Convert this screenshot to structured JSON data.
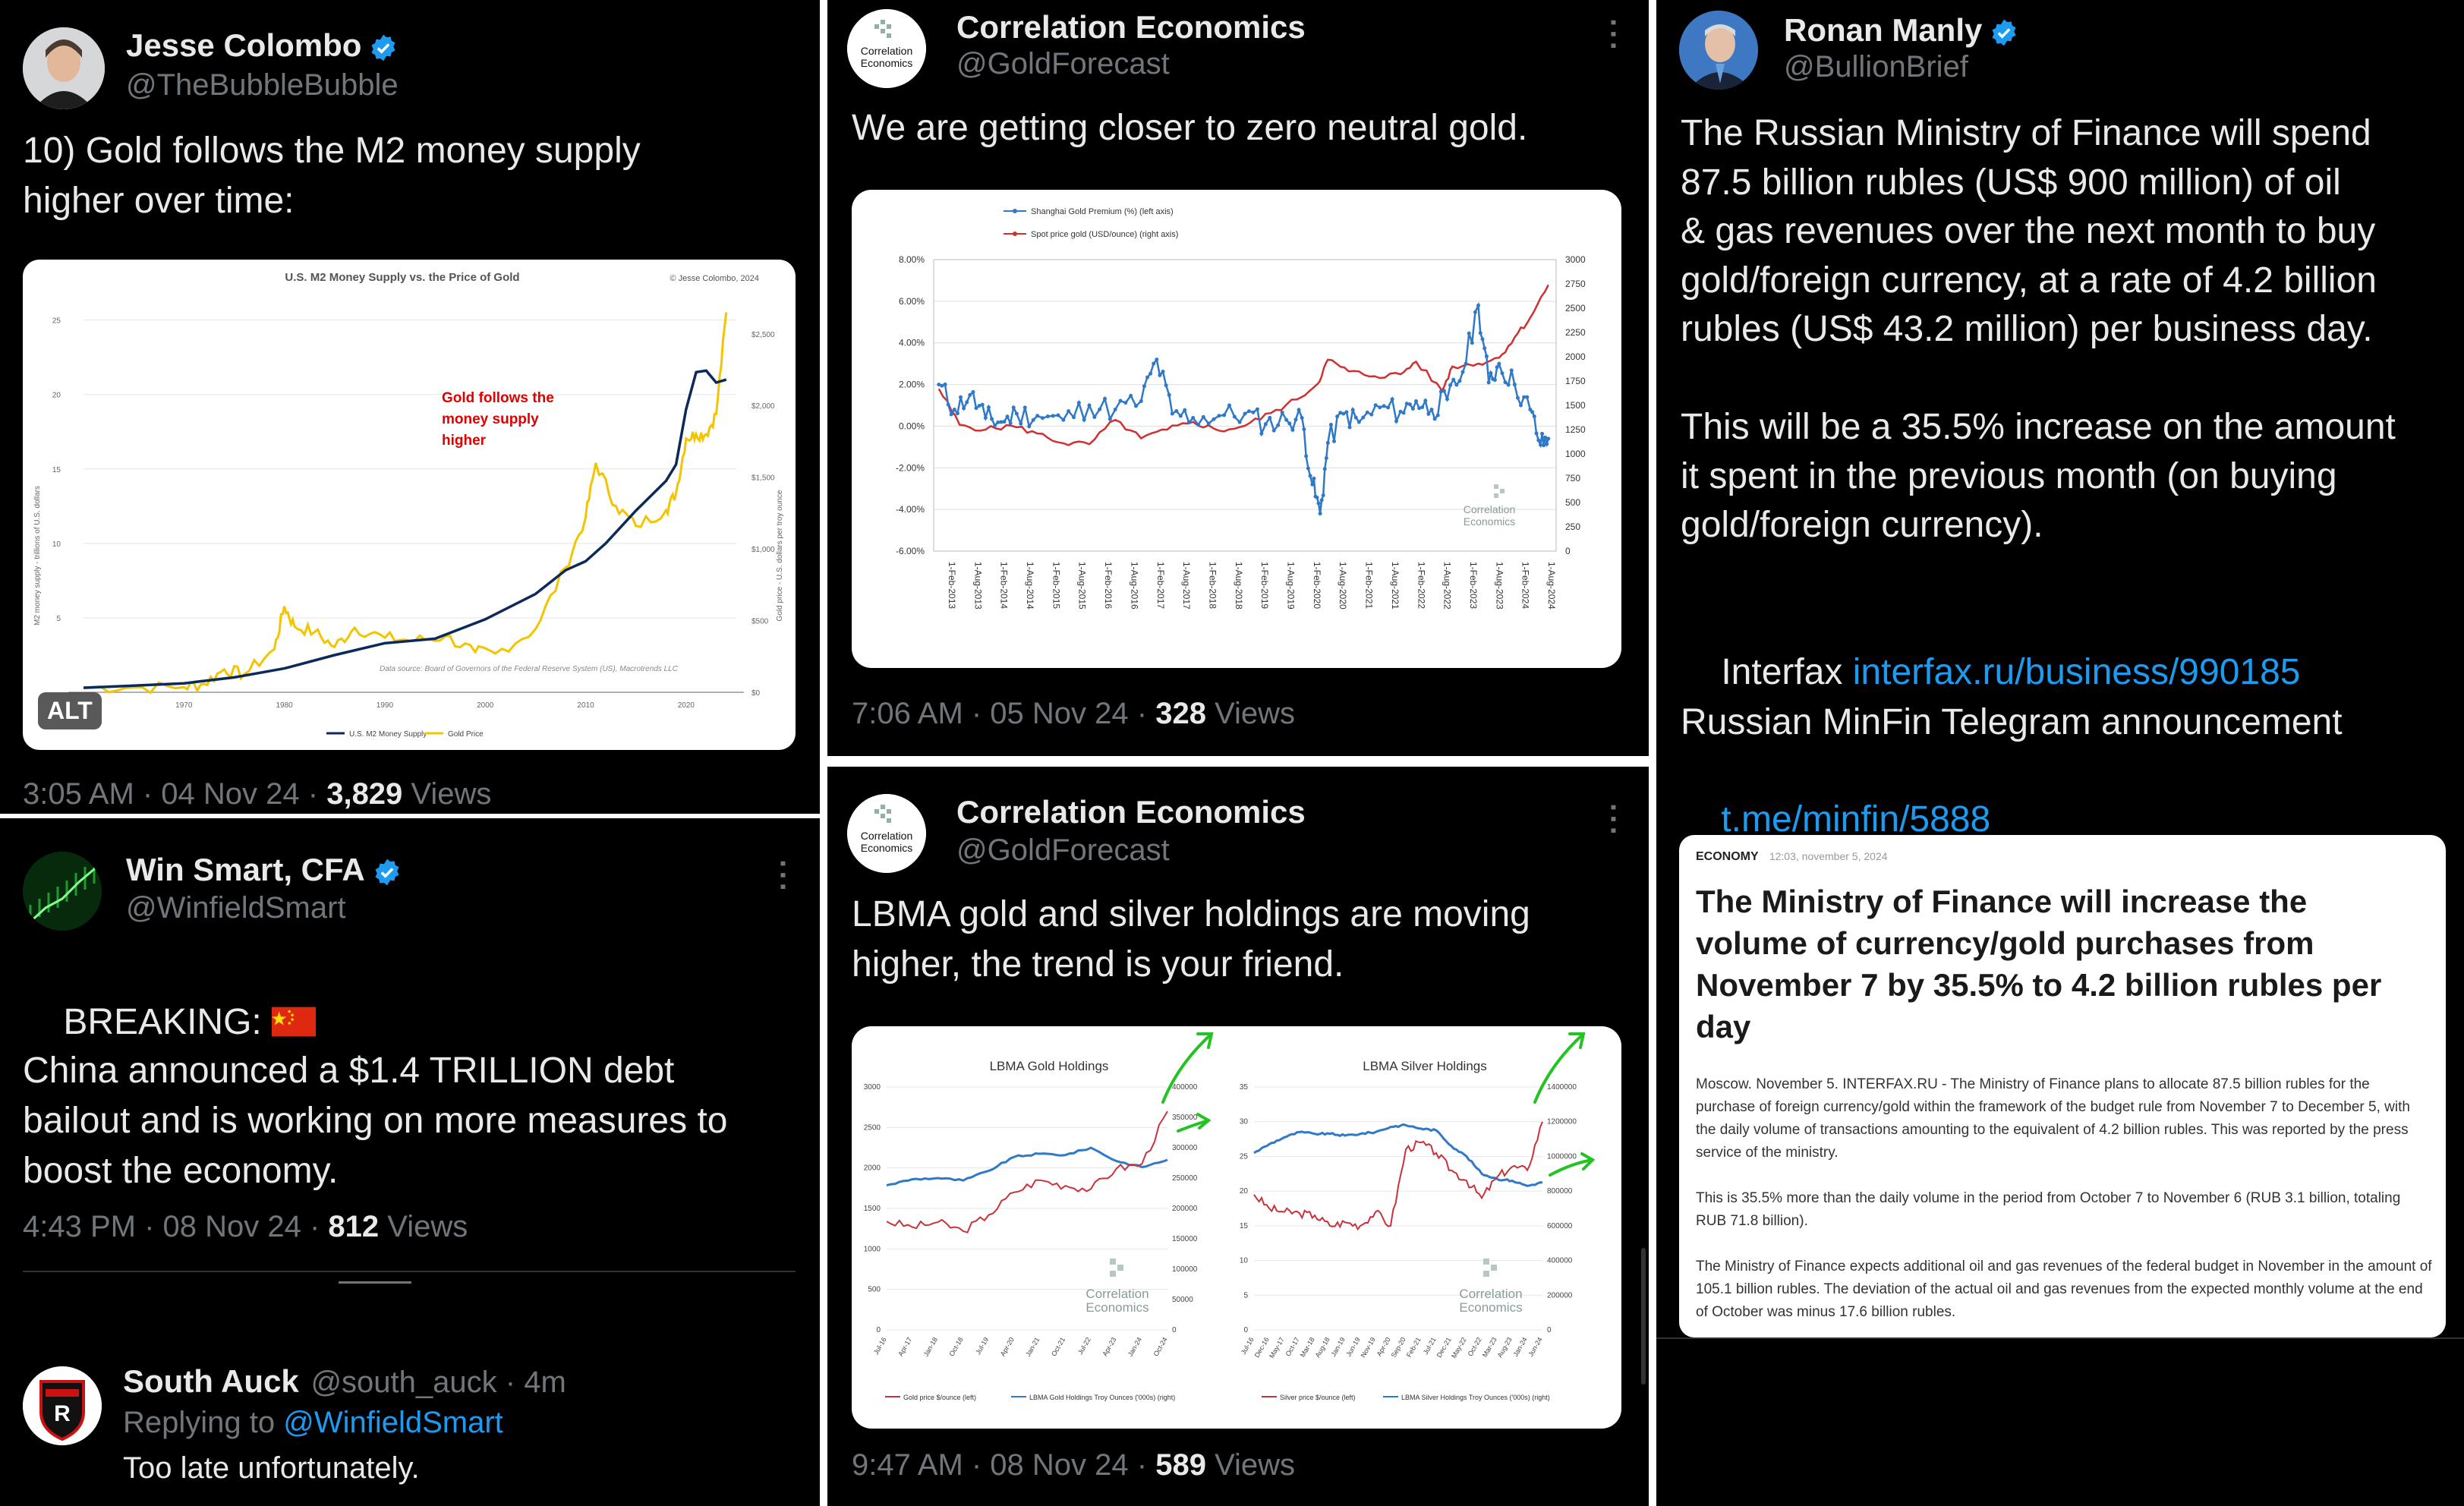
{
  "colors": {
    "background": "#000000",
    "text": "#e7e9ea",
    "muted": "#71767b",
    "link": "#1d9bf0",
    "verified": "#1d9bf0",
    "gold_series": "#f5c400",
    "m2_series": "#0b2a5a",
    "shanghai_series": "#2f79c8",
    "spot_series": "#d03030",
    "lbma_gold": "#c8333b",
    "lbma_holdings": "#2f79c8",
    "arrow": "#22c322",
    "annotation_red": "#e00000"
  },
  "icons": {
    "verified": "verified-badge-icon",
    "more": "more-options-icon",
    "flag": "china-flag-icon"
  },
  "tweet1": {
    "name": "Jesse Colombo",
    "handle": "@TheBubbleBubble",
    "text": "10) Gold follows the M2 money supply\nhigher over time:",
    "alt_badge": "ALT",
    "time": "3:05 AM · 04 Nov 24 · ",
    "views_count": "3,829",
    "views_label": " Views",
    "chart": {
      "title": "U.S. M2 Money Supply vs. the Price of Gold",
      "copyright": "© Jesse Colombo, 2024",
      "annotation": [
        "Gold follows the",
        "money supply",
        "higher"
      ],
      "ylabel_left": "M2 money supply - trillions of U.S. dollars",
      "ylabel_right": "Gold price - U.S. dollars per troy ounce",
      "yticks_left": [
        "25",
        "20",
        "15",
        "10",
        "5"
      ],
      "yticks_right": [
        "$2,500",
        "$2,000",
        "$1,500",
        "$1,000",
        "$500",
        "$0"
      ],
      "xticks": [
        "1970",
        "1980",
        "1990",
        "2000",
        "2010",
        "2020"
      ],
      "source": "Data source: Board of Governors of the Federal Reserve System (US), Macrotrends LLC",
      "legend": [
        "U.S. M2 Money Supply",
        "Gold Price"
      ]
    }
  },
  "chart_data": [
    {
      "type": "line",
      "title": "U.S. M2 Money Supply vs. the Price of Gold",
      "x_unit": "year",
      "xlim": [
        1960,
        2025
      ],
      "series": [
        {
          "name": "U.S. M2 Money Supply",
          "axis": "left",
          "ylim": [
            0,
            26
          ],
          "x": [
            1960,
            1965,
            1970,
            1975,
            1980,
            1985,
            1990,
            1995,
            2000,
            2005,
            2008,
            2010,
            2012,
            2015,
            2018,
            2019,
            2020,
            2021,
            2022,
            2023,
            2024
          ],
          "y": [
            0.3,
            0.45,
            0.6,
            1.0,
            1.6,
            2.5,
            3.3,
            3.6,
            4.9,
            6.6,
            8.2,
            8.8,
            10.0,
            12.2,
            14.2,
            15.3,
            19.0,
            21.5,
            21.6,
            20.8,
            21.0
          ]
        },
        {
          "name": "Gold Price",
          "axis": "right",
          "ylim": [
            0,
            2700
          ],
          "x": [
            1960,
            1965,
            1970,
            1972,
            1974,
            1976,
            1979,
            1980,
            1981,
            1983,
            1985,
            1987,
            1990,
            1993,
            1996,
            1999,
            2001,
            2005,
            2008,
            2010,
            2011,
            2013,
            2015,
            2018,
            2019,
            2020,
            2021,
            2022,
            2023,
            2024
          ],
          "y": [
            35,
            35,
            36,
            58,
            160,
            125,
            300,
            600,
            460,
            420,
            317,
            450,
            380,
            360,
            390,
            280,
            270,
            440,
            870,
            1220,
            1600,
            1300,
            1160,
            1270,
            1390,
            1770,
            1800,
            1800,
            1940,
            2650
          ]
        }
      ]
    },
    {
      "type": "line",
      "title": "",
      "legend": [
        "Shanghai Gold Premium (%) (left axis)",
        "Spot price gold (USD/ounce) (right axis)"
      ],
      "xticks": [
        "1-Feb-2013",
        "1-Aug-2013",
        "1-Feb-2014",
        "1-Aug-2014",
        "1-Feb-2015",
        "1-Aug-2015",
        "1-Feb-2016",
        "1-Aug-2016",
        "1-Feb-2017",
        "1-Aug-2017",
        "1-Feb-2018",
        "1-Aug-2018",
        "1-Feb-2019",
        "1-Aug-2019",
        "1-Feb-2020",
        "1-Aug-2020",
        "1-Feb-2021",
        "1-Aug-2021",
        "1-Feb-2022",
        "1-Aug-2022",
        "1-Feb-2023",
        "1-Aug-2023",
        "1-Feb-2024",
        "1-Aug-2024"
      ],
      "yticks_left": [
        "8.00%",
        "6.00%",
        "4.00%",
        "2.00%",
        "0.00%",
        "-2.00%",
        "-4.00%",
        "-6.00%"
      ],
      "yticks_right": [
        "3000",
        "2750",
        "2500",
        "2250",
        "2000",
        "1750",
        "1500",
        "1250",
        "1000",
        "750",
        "500",
        "250",
        "0"
      ],
      "ylim_left": [
        -6,
        8
      ],
      "ylim_right": [
        0,
        3000
      ],
      "watermark": [
        "Correlation",
        "Economics"
      ],
      "series": [
        {
          "name": "Shanghai Gold Premium (%) (left axis)",
          "axis": "left",
          "x": [
            2013.1,
            2013.4,
            2013.7,
            2014.0,
            2014.3,
            2014.6,
            2015.0,
            2015.5,
            2016.0,
            2016.5,
            2017.0,
            2017.3,
            2017.6,
            2018.0,
            2018.5,
            2019.0,
            2019.4,
            2019.8,
            2020.1,
            2020.3,
            2020.45,
            2020.6,
            2020.9,
            2021.2,
            2021.6,
            2022.0,
            2022.3,
            2022.6,
            2022.9,
            2023.2,
            2023.5,
            2023.7,
            2023.9,
            2024.2,
            2024.5,
            2024.7,
            2024.85
          ],
          "y": [
            2.0,
            0.8,
            1.5,
            0.4,
            0.2,
            0.6,
            0.5,
            0.3,
            1.0,
            0.8,
            1.2,
            3.2,
            0.6,
            0.4,
            0.5,
            0.6,
            0.1,
            0.3,
            0.4,
            -2.8,
            -4.2,
            -0.8,
            0.6,
            0.2,
            0.9,
            0.7,
            1.2,
            0.8,
            1.3,
            2.6,
            5.8,
            2.1,
            3.0,
            2.0,
            0.8,
            -0.9,
            -0.6
          ]
        },
        {
          "name": "Spot price gold (USD/ounce) (right axis)",
          "axis": "right",
          "x": [
            2013.1,
            2013.5,
            2014.0,
            2014.5,
            2015.0,
            2015.5,
            2016.0,
            2016.5,
            2017.0,
            2017.5,
            2018.0,
            2018.5,
            2019.0,
            2019.5,
            2020.0,
            2020.4,
            2020.6,
            2021.0,
            2021.5,
            2022.0,
            2022.3,
            2022.8,
            2023.0,
            2023.5,
            2023.9,
            2024.2,
            2024.5,
            2024.85
          ],
          "y": [
            1670,
            1300,
            1250,
            1290,
            1210,
            1110,
            1100,
            1350,
            1160,
            1250,
            1330,
            1240,
            1290,
            1420,
            1560,
            1720,
            1970,
            1850,
            1800,
            1820,
            1950,
            1650,
            1900,
            1930,
            1990,
            2200,
            2400,
            2740
          ]
        }
      ]
    },
    {
      "type": "line",
      "title": "LBMA Gold Holdings",
      "legend": [
        "Gold price $/ounce (left)",
        "LBMA Gold Holdings Troy Ounces ('000s) (right)"
      ],
      "xticks": [
        "Jul-16",
        "Apr-17",
        "Jan-18",
        "Oct-18",
        "Jul-19",
        "Apr-20",
        "Jan-21",
        "Oct-21",
        "Jul-22",
        "Apr-23",
        "Jan-24",
        "Oct-24"
      ],
      "yticks_left": [
        "3000",
        "2500",
        "2000",
        "1500",
        "1000",
        "500",
        "0"
      ],
      "yticks_right": [
        "400000",
        "350000",
        "300000",
        "250000",
        "200000",
        "150000",
        "100000",
        "50000",
        "0"
      ],
      "ylim_left": [
        0,
        3000
      ],
      "ylim_right": [
        0,
        400000
      ],
      "watermark": [
        "Correlation",
        "Economics"
      ],
      "series": [
        {
          "name": "Gold price $/ounce (left)",
          "axis": "left",
          "x": [
            "Jul-16",
            "Apr-17",
            "Jan-18",
            "Oct-18",
            "Jul-19",
            "Apr-20",
            "Jan-21",
            "Oct-21",
            "Jul-22",
            "Apr-23",
            "Jan-24",
            "Oct-24"
          ],
          "y": [
            1340,
            1270,
            1330,
            1220,
            1420,
            1700,
            1850,
            1780,
            1740,
            1990,
            2050,
            2700
          ]
        },
        {
          "name": "LBMA Gold Holdings Troy Ounces ('000s) (right)",
          "axis": "right",
          "x": [
            "Jul-16",
            "Apr-17",
            "Jan-18",
            "Oct-18",
            "Jul-19",
            "Apr-20",
            "Jan-21",
            "Oct-21",
            "Jul-22",
            "Apr-23",
            "Jan-24",
            "Oct-24"
          ],
          "y": [
            238000,
            248000,
            250000,
            246000,
            262000,
            285000,
            290000,
            288000,
            300000,
            278000,
            268000,
            280000
          ]
        }
      ]
    },
    {
      "type": "line",
      "title": "LBMA Silver Holdings",
      "legend": [
        "Silver price $/ounce (left)",
        "LBMA Silver Holdings Troy Ounces ('000s) (right)"
      ],
      "xticks": [
        "Jul-16",
        "Dec-16",
        "May-17",
        "Oct-17",
        "Mar-18",
        "Aug-18",
        "Jan-19",
        "Jun-19",
        "Nov-19",
        "Apr-20",
        "Sep-20",
        "Feb-21",
        "Jul-21",
        "Dec-21",
        "May-22",
        "Oct-22",
        "Mar-23",
        "Aug-23",
        "Jan-24",
        "Jun-24"
      ],
      "yticks_left": [
        "35",
        "30",
        "25",
        "20",
        "15",
        "10",
        "5",
        "0"
      ],
      "yticks_right": [
        "1400000",
        "1200000",
        "1000000",
        "800000",
        "600000",
        "400000",
        "200000",
        "0"
      ],
      "ylim_left": [
        0,
        35
      ],
      "ylim_right": [
        0,
        1400000
      ],
      "watermark": [
        "Correlation",
        "Economics"
      ],
      "series": [
        {
          "name": "Silver price $/ounce (left)",
          "axis": "left",
          "x": [
            "Jul-16",
            "Dec-16",
            "May-17",
            "Oct-17",
            "Mar-18",
            "Aug-18",
            "Jan-19",
            "Jun-19",
            "Nov-19",
            "Apr-20",
            "Sep-20",
            "Feb-21",
            "Jul-21",
            "Dec-21",
            "May-22",
            "Oct-22",
            "Mar-23",
            "Aug-23",
            "Jan-24",
            "Jun-24"
          ],
          "y": [
            19.5,
            17.5,
            17.0,
            16.8,
            16.5,
            15.0,
            15.5,
            15.0,
            17.0,
            15.0,
            26.0,
            27.0,
            25.5,
            23.0,
            21.5,
            19.0,
            22.0,
            23.5,
            23.0,
            30.0
          ]
        },
        {
          "name": "LBMA Silver Holdings Troy Ounces ('000s) (right)",
          "axis": "right",
          "x": [
            "Jul-16",
            "Dec-16",
            "May-17",
            "Oct-17",
            "Mar-18",
            "Aug-18",
            "Jan-19",
            "Jun-19",
            "Nov-19",
            "Apr-20",
            "Sep-20",
            "Feb-21",
            "Jul-21",
            "Dec-21",
            "May-22",
            "Oct-22",
            "Mar-23",
            "Aug-23",
            "Jan-24",
            "Jun-24"
          ],
          "y": [
            1020000,
            1070000,
            1110000,
            1140000,
            1130000,
            1130000,
            1120000,
            1130000,
            1140000,
            1170000,
            1180000,
            1160000,
            1150000,
            1060000,
            1000000,
            900000,
            870000,
            860000,
            830000,
            850000
          ]
        }
      ]
    }
  ],
  "tweet2": {
    "name": "Correlation Economics",
    "handle": "@GoldForecast",
    "avatar_text": [
      "Correlation",
      "Economics"
    ],
    "text": "We are getting closer to zero neutral gold.",
    "time": "7:06 AM · 05 Nov 24 · ",
    "views_count": "328",
    "views_label": " Views"
  },
  "tweet3": {
    "name": "Ronan Manly",
    "handle": "@BullionBrief",
    "text": "The Russian Ministry of Finance will spend\n87.5 billion rubles (US$ 900 million) of oil\n& gas revenues over the next month to buy\ngold/foreign currency, at a rate of 4.2 billion\nrubles (US$ 43.2 million) per business day.\n\nThis will be a 35.5% increase on the amount\nit spent in the previous month (on buying\ngold/foreign currency).",
    "source_label": "Interfax ",
    "source_link": "interfax.ru/business/990185",
    "tg_label": "Russian MinFin Telegram announcement",
    "tg_link": "t.me/minfin/5888",
    "article": {
      "section": "ECONOMY",
      "timestamp": "12:03, november 5, 2024",
      "headline": "The Ministry of Finance will increase the volume of currency/gold purchases from November 7 by 35.5% to 4.2 billion rubles per day",
      "p1": "Moscow. November 5. INTERFAX.RU - The Ministry of Finance plans to allocate 87.5 billion rubles for the purchase of foreign currency/gold within the framework of the budget rule from November 7 to December 5, with the daily volume of transactions amounting to the equivalent of 4.2 billion rubles. This was reported by the press service of the ministry.",
      "p2": "This is 35.5% more than the daily volume in the period from October 7 to November 6 (RUB 3.1 billion, totaling RUB 71.8 billion).",
      "p3": "The Ministry of Finance expects additional oil and gas revenues of the federal budget in November in the amount of 105.1 billion rubles. The deviation of the actual oil and gas revenues from the expected monthly volume at the end of October was minus 17.6 billion rubles."
    }
  },
  "tweet4": {
    "name": "Win Smart, CFA",
    "handle": "@WinfieldSmart",
    "line1": "BREAKING: ",
    "text": "China announced a $1.4 TRILLION debt\nbailout and is working on more measures to\nboost the economy.",
    "time": "4:43 PM · 08 Nov 24 · ",
    "views_count": "812",
    "views_label": " Views"
  },
  "reply": {
    "name": "South Auck",
    "handle": "@south_auck · 4m",
    "replying_label": "Replying to ",
    "replying_to": "@WinfieldSmart",
    "text": "Too late unfortunately."
  },
  "tweet5": {
    "name": "Correlation Economics",
    "handle": "@GoldForecast",
    "avatar_text": [
      "Correlation",
      "Economics"
    ],
    "text": "LBMA gold and silver holdings are moving\nhigher, the trend is your friend.",
    "time": "9:47 AM · 08 Nov 24 · ",
    "views_count": "589",
    "views_label": " Views"
  }
}
